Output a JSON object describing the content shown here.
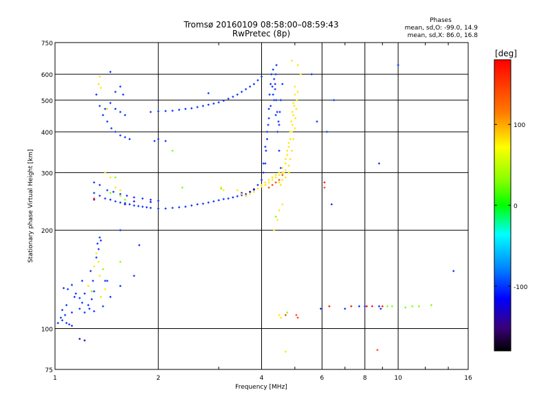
{
  "chart_data": {
    "type": "scatter",
    "title": "Tromsø 20160109 08:58:00–08:59:43",
    "subtitle": "RwPretec (8p)",
    "stats": {
      "title": "Phases",
      "line_o": "mean, sd,O: -99.0, 14.9",
      "line_x": "mean, sd,X: 86.0, 16.8"
    },
    "xlabel": "Frequency [MHz]",
    "ylabel": "Stationary phase Virtual Height [km]",
    "x_scale": "log",
    "y_scale": "log",
    "xlim": [
      1,
      16
    ],
    "ylim": [
      75,
      750
    ],
    "x_ticks": [
      1,
      2,
      4,
      6,
      8,
      10,
      16
    ],
    "x_tick_labels": [
      "1",
      "2",
      "4",
      "6",
      "8",
      "10",
      "16"
    ],
    "y_ticks": [
      75,
      100,
      200,
      300,
      400,
      500,
      600,
      750
    ],
    "y_tick_labels": [
      "75",
      "100",
      "200",
      "300",
      "400",
      "500",
      "600",
      "750"
    ],
    "grid": true,
    "colorbar": {
      "label": "[deg]",
      "range": [
        -180,
        180
      ],
      "ticks": [
        100,
        0,
        -100
      ],
      "tick_labels": [
        "100",
        "0",
        "-100"
      ]
    },
    "series": [
      {
        "color_value": -100,
        "points": [
          [
            1.02,
            104
          ],
          [
            1.04,
            108
          ],
          [
            1.05,
            106
          ],
          [
            1.07,
            110
          ],
          [
            1.08,
            104
          ],
          [
            1.1,
            103
          ],
          [
            1.12,
            102
          ],
          [
            1.05,
            114
          ],
          [
            1.08,
            118
          ],
          [
            1.12,
            112
          ],
          [
            1.06,
            133
          ],
          [
            1.09,
            132
          ],
          [
            1.12,
            136
          ],
          [
            1.15,
            128
          ],
          [
            1.18,
            124
          ],
          [
            1.22,
            128
          ],
          [
            1.2,
            120
          ],
          [
            1.25,
            118
          ],
          [
            1.28,
            123
          ],
          [
            1.3,
            130
          ],
          [
            1.14,
            125
          ],
          [
            1.18,
            115
          ],
          [
            1.22,
            112
          ],
          [
            1.26,
            115
          ],
          [
            1.3,
            113
          ],
          [
            1.38,
            117
          ],
          [
            1.42,
            140
          ],
          [
            1.2,
            140
          ],
          [
            1.27,
            150
          ],
          [
            1.29,
            140
          ],
          [
            1.32,
            165
          ],
          [
            1.34,
            175
          ],
          [
            1.35,
            190
          ],
          [
            1.33,
            182
          ],
          [
            1.36,
            186
          ],
          [
            1.4,
            140
          ],
          [
            1.3,
            260
          ],
          [
            1.35,
            255
          ],
          [
            1.4,
            250
          ],
          [
            1.45,
            248
          ],
          [
            1.5,
            245
          ],
          [
            1.55,
            243
          ],
          [
            1.6,
            242
          ],
          [
            1.65,
            240
          ],
          [
            1.7,
            238
          ],
          [
            1.75,
            237
          ],
          [
            1.8,
            236
          ],
          [
            1.85,
            235
          ],
          [
            1.9,
            234
          ],
          [
            2.0,
            233
          ],
          [
            2.1,
            233
          ],
          [
            2.2,
            234
          ],
          [
            2.3,
            235
          ],
          [
            2.4,
            236
          ],
          [
            2.5,
            238
          ],
          [
            2.6,
            240
          ],
          [
            2.7,
            241
          ],
          [
            2.8,
            243
          ],
          [
            2.9,
            245
          ],
          [
            3.0,
            247
          ],
          [
            3.1,
            249
          ],
          [
            3.2,
            250
          ],
          [
            3.3,
            252
          ],
          [
            3.4,
            254
          ],
          [
            3.5,
            256
          ],
          [
            3.6,
            258
          ],
          [
            3.7,
            262
          ],
          [
            3.8,
            267
          ],
          [
            3.9,
            275
          ],
          [
            4.0,
            285
          ],
          [
            4.05,
            300
          ],
          [
            4.1,
            320
          ],
          [
            4.12,
            350
          ],
          [
            4.15,
            380
          ],
          [
            4.18,
            420
          ],
          [
            4.2,
            470
          ],
          [
            4.22,
            520
          ],
          [
            4.25,
            560
          ],
          [
            4.27,
            600
          ],
          [
            4.3,
            550
          ],
          [
            4.35,
            500
          ],
          [
            4.4,
            450
          ],
          [
            4.45,
            400
          ],
          [
            4.5,
            350
          ],
          [
            4.55,
            310
          ],
          [
            4.6,
            300
          ],
          [
            1.3,
            280
          ],
          [
            1.35,
            275
          ],
          [
            1.42,
            265
          ],
          [
            1.48,
            262
          ],
          [
            1.55,
            258
          ],
          [
            1.62,
            255
          ],
          [
            1.7,
            252
          ],
          [
            1.8,
            250
          ],
          [
            1.9,
            248
          ],
          [
            2.0,
            246
          ],
          [
            1.32,
            520
          ],
          [
            1.35,
            480
          ],
          [
            1.38,
            450
          ],
          [
            1.42,
            430
          ],
          [
            1.46,
            410
          ],
          [
            1.5,
            400
          ],
          [
            1.55,
            390
          ],
          [
            1.6,
            385
          ],
          [
            1.65,
            380
          ],
          [
            1.4,
            470
          ],
          [
            1.45,
            490
          ],
          [
            1.5,
            470
          ],
          [
            1.55,
            460
          ],
          [
            1.6,
            450
          ],
          [
            1.5,
            530
          ],
          [
            1.45,
            610
          ],
          [
            1.55,
            550
          ],
          [
            1.58,
            520
          ],
          [
            1.9,
            460
          ],
          [
            2.0,
            462
          ],
          [
            2.1,
            463
          ],
          [
            2.2,
            464
          ],
          [
            2.3,
            467
          ],
          [
            2.4,
            470
          ],
          [
            2.5,
            472
          ],
          [
            2.6,
            476
          ],
          [
            2.7,
            480
          ],
          [
            2.8,
            484
          ],
          [
            2.9,
            488
          ],
          [
            3.0,
            492
          ],
          [
            3.1,
            498
          ],
          [
            3.2,
            505
          ],
          [
            3.3,
            512
          ],
          [
            3.4,
            520
          ],
          [
            3.5,
            530
          ],
          [
            3.6,
            540
          ],
          [
            3.7,
            550
          ],
          [
            3.8,
            560
          ],
          [
            3.9,
            575
          ],
          [
            4.0,
            590
          ],
          [
            2.8,
            525
          ],
          [
            2.0,
            380
          ],
          [
            2.1,
            375
          ],
          [
            1.95,
            375
          ],
          [
            4.05,
            320
          ],
          [
            4.1,
            360
          ],
          [
            4.15,
            400
          ],
          [
            4.2,
            440
          ],
          [
            4.25,
            480
          ],
          [
            4.32,
            520
          ],
          [
            4.38,
            560
          ],
          [
            4.4,
            600
          ],
          [
            4.42,
            640
          ],
          [
            4.32,
            620
          ],
          [
            4.35,
            580
          ],
          [
            4.38,
            540
          ],
          [
            4.41,
            500
          ],
          [
            4.44,
            460
          ],
          [
            4.48,
            430
          ],
          [
            4.5,
            420
          ],
          [
            4.52,
            460
          ],
          [
            4.55,
            500
          ],
          [
            4.6,
            560
          ],
          [
            5.8,
            430
          ],
          [
            5.6,
            600
          ],
          [
            6.2,
            400
          ],
          [
            6.5,
            500
          ],
          [
            6.4,
            240
          ],
          [
            8.8,
            320
          ],
          [
            14.5,
            150
          ],
          [
            10.0,
            640
          ],
          [
            5.95,
            115
          ],
          [
            7.0,
            115
          ],
          [
            8.8,
            117
          ],
          [
            8.9,
            115
          ],
          [
            8.0,
            117
          ],
          [
            7.7,
            117
          ],
          [
            1.55,
            200
          ],
          [
            1.76,
            180
          ],
          [
            1.7,
            145
          ],
          [
            1.55,
            135
          ],
          [
            1.45,
            125
          ]
        ]
      },
      {
        "color_value": -130,
        "points": [
          [
            1.18,
            93
          ],
          [
            1.22,
            92
          ],
          [
            1.3,
            248
          ],
          [
            1.6,
            240
          ],
          [
            1.7,
            245
          ],
          [
            1.9,
            244
          ],
          [
            3.5,
            260
          ],
          [
            3.6,
            255
          ],
          [
            3.7,
            262
          ],
          [
            3.8,
            266
          ]
        ]
      },
      {
        "color_value": 100,
        "points": [
          [
            1.32,
            170
          ],
          [
            1.34,
            160
          ],
          [
            1.3,
            155
          ],
          [
            1.35,
            145
          ],
          [
            1.25,
            135
          ],
          [
            1.4,
            132
          ],
          [
            1.36,
            125
          ],
          [
            1.35,
            590
          ],
          [
            1.34,
            560
          ],
          [
            1.36,
            545
          ],
          [
            1.42,
            470
          ],
          [
            1.4,
            300
          ],
          [
            1.45,
            290
          ],
          [
            1.5,
            270
          ],
          [
            1.55,
            265
          ],
          [
            3.4,
            265
          ],
          [
            3.5,
            258
          ],
          [
            3.6,
            255
          ],
          [
            3.7,
            258
          ],
          [
            3.8,
            262
          ],
          [
            3.9,
            268
          ],
          [
            4.0,
            272
          ],
          [
            4.1,
            275
          ],
          [
            4.2,
            280
          ],
          [
            4.3,
            285
          ],
          [
            4.4,
            290
          ],
          [
            4.5,
            295
          ],
          [
            4.6,
            300
          ],
          [
            4.7,
            305
          ],
          [
            4.8,
            315
          ],
          [
            4.85,
            330
          ],
          [
            4.9,
            350
          ],
          [
            4.95,
            380
          ],
          [
            5.0,
            410
          ],
          [
            5.02,
            440
          ],
          [
            5.05,
            470
          ],
          [
            5.07,
            500
          ],
          [
            5.1,
            530
          ],
          [
            5.0,
            520
          ],
          [
            4.98,
            480
          ],
          [
            4.95,
            450
          ],
          [
            4.92,
            420
          ],
          [
            4.9,
            400
          ],
          [
            4.85,
            380
          ],
          [
            4.8,
            360
          ],
          [
            4.75,
            340
          ],
          [
            4.7,
            320
          ],
          [
            4.6,
            310
          ],
          [
            4.5,
            300
          ],
          [
            4.4,
            295
          ],
          [
            4.3,
            290
          ],
          [
            4.2,
            285
          ],
          [
            4.1,
            280
          ],
          [
            4.0,
            275
          ],
          [
            4.5,
            280
          ],
          [
            4.6,
            285
          ],
          [
            4.7,
            290
          ],
          [
            4.8,
            300
          ],
          [
            4.55,
            275
          ],
          [
            4.65,
            300
          ],
          [
            4.7,
            330
          ],
          [
            4.75,
            350
          ],
          [
            4.8,
            370
          ],
          [
            4.85,
            400
          ],
          [
            4.88,
            430
          ],
          [
            4.92,
            460
          ],
          [
            4.95,
            490
          ],
          [
            5.0,
            550
          ],
          [
            4.6,
            240
          ],
          [
            4.5,
            230
          ],
          [
            4.45,
            215
          ],
          [
            4.35,
            200
          ],
          [
            5.1,
            640
          ],
          [
            4.9,
            660
          ],
          [
            4.7,
            85
          ],
          [
            4.5,
            110
          ],
          [
            4.55,
            108
          ],
          [
            5.2,
            600
          ],
          [
            3.05,
            270
          ],
          [
            3.1,
            265
          ]
        ]
      },
      {
        "color_value": 150,
        "points": [
          [
            4.6,
            295
          ],
          [
            4.5,
            285
          ],
          [
            4.4,
            280
          ],
          [
            4.3,
            275
          ],
          [
            4.2,
            270
          ],
          [
            5.05,
            110
          ],
          [
            5.1,
            108
          ],
          [
            4.7,
            110
          ],
          [
            6.1,
            270
          ],
          [
            8.7,
            86
          ]
        ]
      },
      {
        "color_value": 40,
        "points": [
          [
            1.45,
            260
          ],
          [
            1.55,
            255
          ],
          [
            1.6,
            248
          ],
          [
            1.5,
            290
          ],
          [
            1.55,
            160
          ],
          [
            1.38,
            152
          ],
          [
            2.2,
            350
          ],
          [
            4.4,
            220
          ],
          [
            4.75,
            112
          ],
          [
            2.35,
            270
          ],
          [
            1.28,
            130
          ],
          [
            3.05,
            268
          ],
          [
            9.6,
            117
          ],
          [
            9.3,
            117
          ],
          [
            10.5,
            116
          ],
          [
            11.0,
            117
          ],
          [
            11.5,
            117
          ],
          [
            12.5,
            118
          ]
        ]
      },
      {
        "color_value": 175,
        "points": [
          [
            6.3,
            117
          ],
          [
            7.3,
            117
          ],
          [
            8.1,
            117
          ],
          [
            9.0,
            117
          ],
          [
            8.4,
            117
          ],
          [
            6.1,
            280
          ],
          [
            1.3,
            250
          ]
        ]
      }
    ]
  }
}
